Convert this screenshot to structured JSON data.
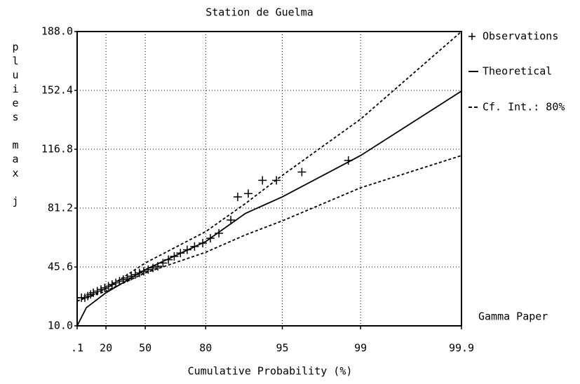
{
  "chart_data": {
    "type": "probability_plot",
    "title": "Station de Guelma",
    "x_label": "Cumulative Probability (%)",
    "y_label": "pluies max j",
    "annotation": "Gamma Paper",
    "xscale": "gamma-probability",
    "xlim": [
      0.1,
      99.9
    ],
    "xticks": [
      {
        "value": 0.1,
        "label": ".1"
      },
      20,
      50,
      80,
      95,
      99,
      99.9
    ],
    "ylim": [
      10,
      188
    ],
    "yticks": [
      {
        "value": 10,
        "label": "10.0"
      },
      45.6,
      81.2,
      116.8,
      152.4,
      {
        "value": 188,
        "label": "188.0"
      }
    ],
    "grid": true,
    "legend": "right",
    "series": [
      {
        "name": "Observations",
        "marker": "plus",
        "color": "#000000",
        "x": [
          2,
          4,
          6,
          8,
          10,
          13,
          16,
          19,
          22,
          25,
          28,
          31,
          34,
          37,
          40,
          43,
          46,
          49,
          52,
          55,
          58,
          61,
          64,
          67,
          70,
          73,
          76,
          79,
          81.5,
          84,
          87,
          88.5,
          90.5,
          92.7,
          94.4,
          96.6,
          98.7
        ],
        "values": [
          27,
          27,
          28,
          29,
          30,
          31,
          32,
          33,
          34,
          35,
          36,
          37,
          38,
          39,
          40,
          41,
          42,
          43,
          44,
          45,
          46,
          48,
          50,
          52,
          54,
          56,
          58,
          60,
          63,
          66,
          74,
          88,
          90,
          98,
          98,
          103,
          110
        ]
      },
      {
        "name": "Theoretical",
        "line": "solid",
        "color": "#000000",
        "x": [
          0.1,
          5,
          20,
          50,
          80,
          90,
          95,
          99,
          99.9
        ],
        "values": [
          10,
          21,
          30,
          44,
          61,
          78,
          88,
          113,
          152
        ]
      }
    ],
    "confidence_interval": {
      "name": "Cf. Int.: 80%",
      "line": "dashed",
      "color": "#000000",
      "x": [
        0.1,
        5,
        20,
        50,
        80,
        90,
        95,
        99,
        99.9
      ],
      "upper": [
        27,
        27,
        32.5,
        48,
        67,
        84,
        101,
        135,
        188
      ],
      "lower": [
        25,
        27,
        31,
        42,
        54.5,
        65,
        73.5,
        93.5,
        113
      ]
    }
  }
}
